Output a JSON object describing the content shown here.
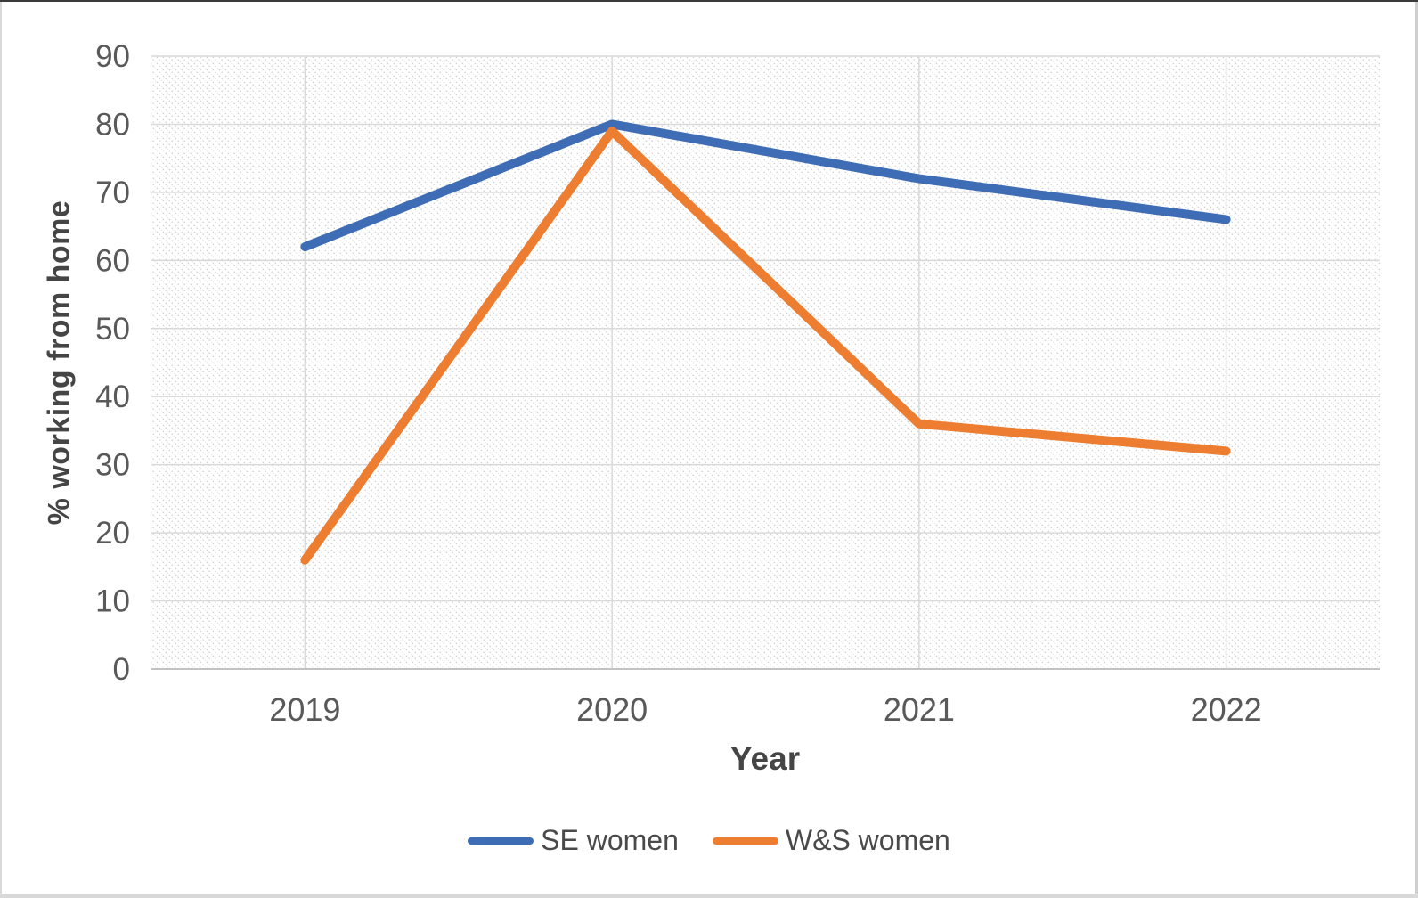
{
  "chart_data": {
    "type": "line",
    "title": "",
    "xlabel": "Year",
    "ylabel": "% working from home",
    "categories": [
      "2019",
      "2020",
      "2021",
      "2022"
    ],
    "series": [
      {
        "name": "SE women",
        "color": "#3E6CB5",
        "values": [
          62,
          80,
          72,
          66
        ]
      },
      {
        "name": "W&S women",
        "color": "#ED7D31",
        "values": [
          16,
          79,
          36,
          32
        ]
      }
    ],
    "ylim": [
      0,
      90
    ],
    "yticks": [
      0,
      10,
      20,
      30,
      40,
      50,
      60,
      70,
      80,
      90
    ],
    "grid": true,
    "legend_position": "bottom",
    "plot_background": "light-diagonal-hatch"
  },
  "colors": {
    "series_blue": "#3E6CB5",
    "series_orange": "#ED7D31",
    "gridline": "#d9d9d9",
    "axis_line": "#c2c2c2",
    "tick_label": "#595959",
    "axis_title": "#454545",
    "legend_label": "#4a4a4a",
    "hatch": "#d2d2d2",
    "frame_border": "#d9d9d9",
    "frame_top_edge": "#3a3a3a",
    "plot_fill": "#ffffff"
  }
}
